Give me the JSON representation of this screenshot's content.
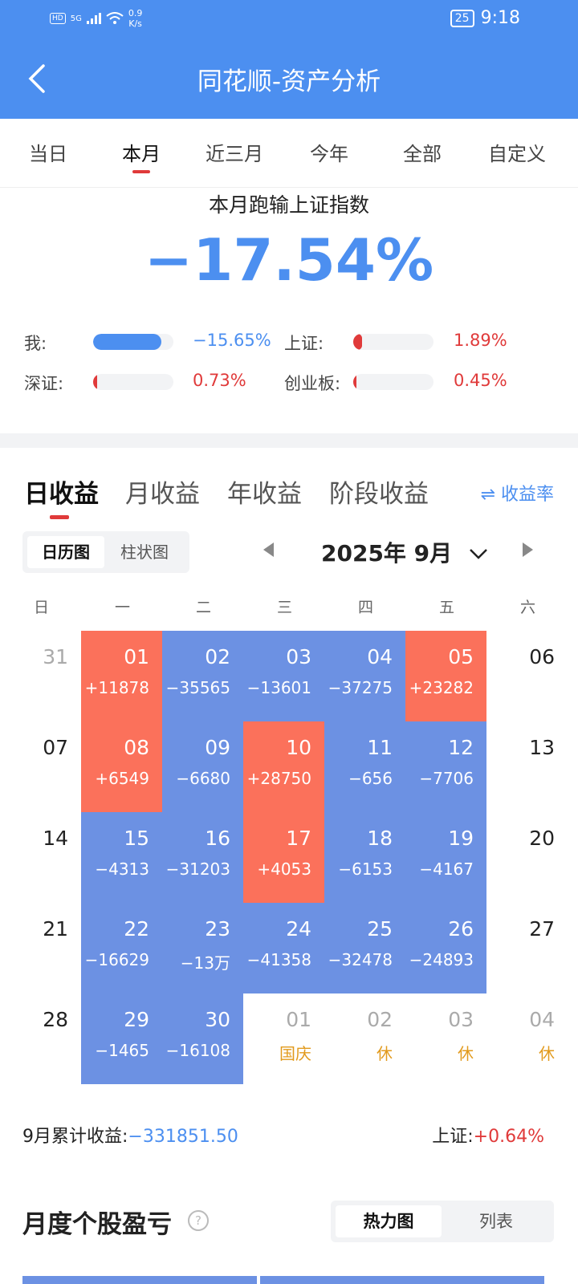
{
  "status_bar": {
    "hd": "HD",
    "signal": "5G",
    "speed_value": "0.9",
    "speed_unit": "K/s",
    "battery": "25",
    "time": "9:18"
  },
  "header": {
    "title": "同花顺-资产分析"
  },
  "period_tabs": [
    "当日",
    "本月",
    "近三月",
    "今年",
    "全部",
    "自定义"
  ],
  "summary": {
    "subtitle": "本月跑输上证指数",
    "value": "−17.54%",
    "stats": [
      {
        "label": "我:",
        "value": "−15.65%",
        "fraction": 0.85,
        "color": "#4c8ff0"
      },
      {
        "label": "上证:",
        "value": "1.89%",
        "fraction": 0.11,
        "color": "#e03a3a"
      },
      {
        "label": "深证:",
        "value": "0.73%",
        "fraction": 0.05,
        "color": "#e03a3a"
      },
      {
        "label": "创业板:",
        "value": "0.45%",
        "fraction": 0.03,
        "color": "#e03a3a"
      }
    ]
  },
  "returns_tabs": [
    "日收益",
    "月收益",
    "年收益",
    "阶段收益"
  ],
  "rate_link": "⇌ 收益率",
  "view_toggle": [
    "日历图",
    "柱状图"
  ],
  "month": "2025年 9月",
  "weekdays": [
    "日",
    "一",
    "二",
    "三",
    "四",
    "五",
    "六"
  ],
  "calendar": [
    [
      {
        "d": "31",
        "v": "",
        "k": "gray"
      },
      {
        "d": "01",
        "v": "+11878",
        "k": "red"
      },
      {
        "d": "02",
        "v": "−35565",
        "k": "blue"
      },
      {
        "d": "03",
        "v": "−13601",
        "k": "blue"
      },
      {
        "d": "04",
        "v": "−37275",
        "k": "blue"
      },
      {
        "d": "05",
        "v": "+23282",
        "k": "red"
      },
      {
        "d": "06",
        "v": "",
        "k": "plain"
      }
    ],
    [
      {
        "d": "07",
        "v": "",
        "k": "plain"
      },
      {
        "d": "08",
        "v": "+6549",
        "k": "red"
      },
      {
        "d": "09",
        "v": "−6680",
        "k": "blue"
      },
      {
        "d": "10",
        "v": "+28750",
        "k": "red"
      },
      {
        "d": "11",
        "v": "−656",
        "k": "blue"
      },
      {
        "d": "12",
        "v": "−7706",
        "k": "blue"
      },
      {
        "d": "13",
        "v": "",
        "k": "plain"
      }
    ],
    [
      {
        "d": "14",
        "v": "",
        "k": "plain"
      },
      {
        "d": "15",
        "v": "−4313",
        "k": "blue"
      },
      {
        "d": "16",
        "v": "−31203",
        "k": "blue"
      },
      {
        "d": "17",
        "v": "+4053",
        "k": "red"
      },
      {
        "d": "18",
        "v": "−6153",
        "k": "blue"
      },
      {
        "d": "19",
        "v": "−4167",
        "k": "blue"
      },
      {
        "d": "20",
        "v": "",
        "k": "plain"
      }
    ],
    [
      {
        "d": "21",
        "v": "",
        "k": "plain"
      },
      {
        "d": "22",
        "v": "−16629",
        "k": "blue"
      },
      {
        "d": "23",
        "v": "−13万",
        "k": "blue"
      },
      {
        "d": "24",
        "v": "−41358",
        "k": "blue"
      },
      {
        "d": "25",
        "v": "−32478",
        "k": "blue"
      },
      {
        "d": "26",
        "v": "−24893",
        "k": "blue"
      },
      {
        "d": "27",
        "v": "",
        "k": "plain"
      }
    ],
    [
      {
        "d": "28",
        "v": "",
        "k": "plain"
      },
      {
        "d": "29",
        "v": "−1465",
        "k": "blue"
      },
      {
        "d": "30",
        "v": "−16108",
        "k": "blue"
      },
      {
        "d": "01",
        "v": "国庆",
        "k": "gray"
      },
      {
        "d": "02",
        "v": "休",
        "k": "gray"
      },
      {
        "d": "03",
        "v": "休",
        "k": "gray"
      },
      {
        "d": "04",
        "v": "休",
        "k": "gray"
      }
    ]
  ],
  "footer": {
    "label": "9月累计收益:",
    "value": "−331851.50",
    "index_label": "上证:",
    "index_value": "+0.64%"
  },
  "stock_section": {
    "title": "月度个股盈亏",
    "help": "?",
    "views": [
      "热力图",
      "列表"
    ]
  }
}
